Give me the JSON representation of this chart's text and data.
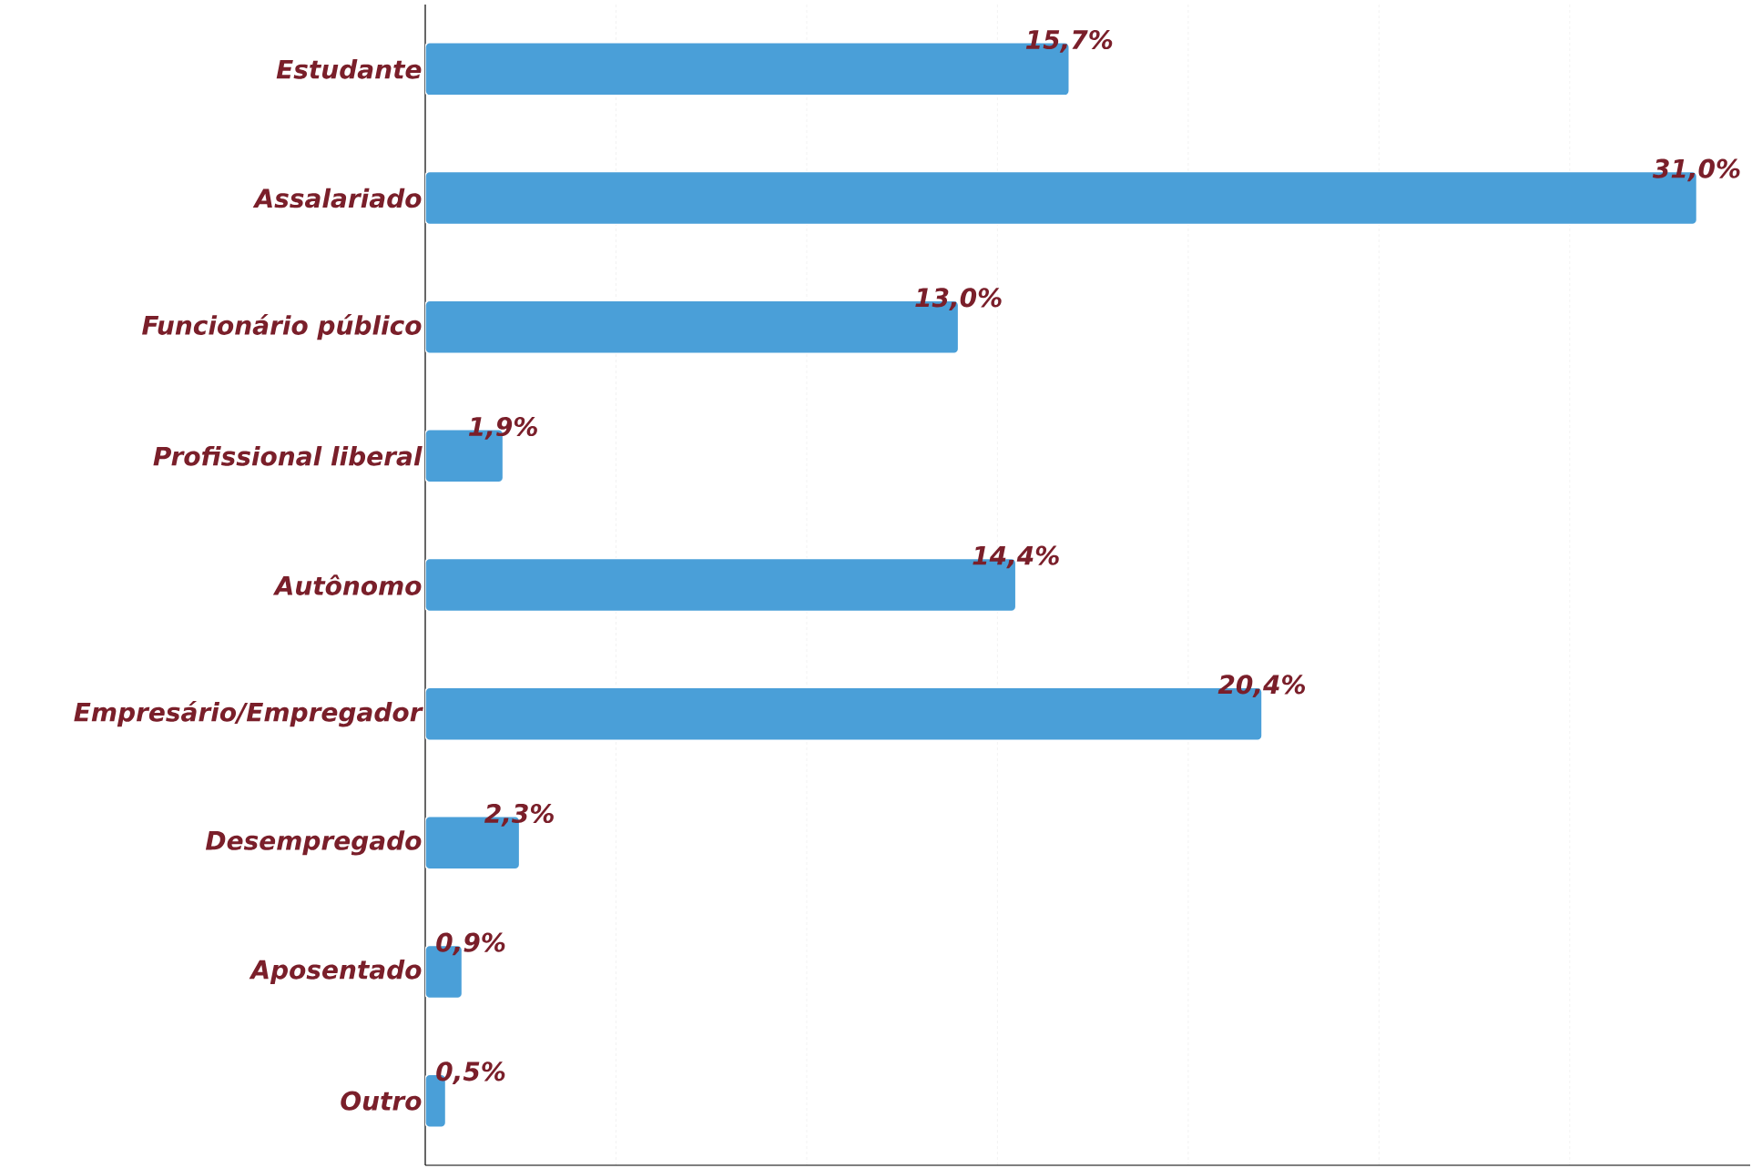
{
  "chart_data": {
    "type": "bar",
    "orientation": "horizontal",
    "categories": [
      "Estudante",
      "Assalariado",
      "Funcionário público",
      "Profissional liberal",
      "Autônomo",
      "Empresário/Empregador",
      "Desempregado",
      "Aposentado",
      "Outro"
    ],
    "values": [
      15.7,
      31.0,
      13.0,
      1.9,
      14.4,
      20.4,
      2.3,
      0.9,
      0.5
    ],
    "value_labels": [
      "15,7%",
      "31,0%",
      "13,0%",
      "1,9%",
      "14,4%",
      "20,4%",
      "2,3%",
      "0,9%",
      "0,5%"
    ],
    "color": "#4a9fd8",
    "xlim": [
      0,
      32.3
    ],
    "xticks": [
      {
        "value": 4.65,
        "label": null
      },
      {
        "value": 9.3,
        "label": null
      },
      {
        "value": 13.95,
        "label": null
      },
      {
        "value": 18.6,
        "label": null
      },
      {
        "value": 23.25,
        "label": null
      },
      {
        "value": 27.9,
        "label": null
      }
    ],
    "grid": "x",
    "tick_labels": "y"
  }
}
